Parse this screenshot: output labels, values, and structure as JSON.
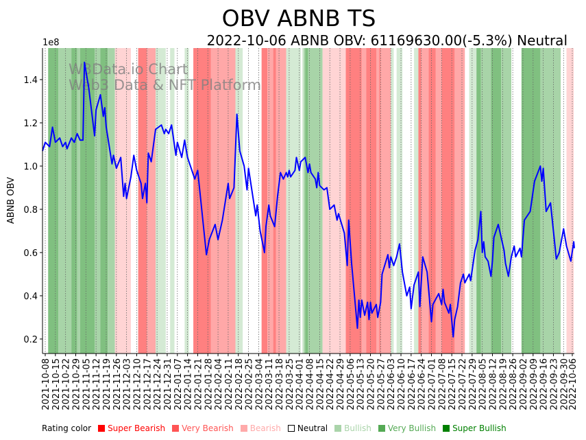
{
  "chart_data": {
    "type": "line",
    "title": "OBV ABNB TS",
    "subtitle": "2022-10-06 ABNB OBV: 61169630.00(-5.3%) Neutral",
    "ylabel": "ABNB OBV",
    "y_scale_label": "1e8",
    "watermark": [
      "W3Data.io Chart",
      "Web3 Data & NFT Platform"
    ],
    "x_unit": "days since 2021-10-08",
    "xlim": [
      -2,
      365
    ],
    "ylim": [
      0.133,
      1.546
    ],
    "yticks": [
      0.2,
      0.4,
      0.6,
      0.8,
      1.0,
      1.2,
      1.4
    ],
    "ytick_labels": [
      "0.2",
      "0.4",
      "0.6",
      "0.8",
      "1.0",
      "1.2",
      "1.4"
    ],
    "xtick_labels": [
      "2021-10-08",
      "2021-10-15",
      "2021-10-22",
      "2021-10-29",
      "2021-11-05",
      "2021-11-12",
      "2021-11-19",
      "2021-11-26",
      "2021-12-03",
      "2021-12-10",
      "2021-12-17",
      "2021-12-24",
      "2021-12-31",
      "2022-01-07",
      "2022-01-14",
      "2022-01-21",
      "2022-01-28",
      "2022-02-04",
      "2022-02-11",
      "2022-02-18",
      "2022-02-25",
      "2022-03-04",
      "2022-03-11",
      "2022-03-18",
      "2022-03-25",
      "2022-04-01",
      "2022-04-08",
      "2022-04-15",
      "2022-04-22",
      "2022-04-29",
      "2022-05-06",
      "2022-05-13",
      "2022-05-20",
      "2022-05-27",
      "2022-06-03",
      "2022-06-10",
      "2022-06-17",
      "2022-06-24",
      "2022-07-01",
      "2022-07-08",
      "2022-07-15",
      "2022-07-22",
      "2022-07-29",
      "2022-08-05",
      "2022-08-12",
      "2022-08-19",
      "2022-08-26",
      "2022-09-02",
      "2022-09-09",
      "2022-09-16",
      "2022-09-23",
      "2022-09-30",
      "2022-10-06"
    ],
    "xtick_days": [
      0,
      7,
      14,
      21,
      28,
      35,
      42,
      49,
      56,
      63,
      70,
      77,
      84,
      91,
      98,
      105,
      112,
      119,
      126,
      133,
      140,
      147,
      154,
      161,
      168,
      175,
      182,
      189,
      196,
      203,
      210,
      217,
      224,
      231,
      238,
      245,
      252,
      259,
      266,
      273,
      280,
      287,
      294,
      301,
      308,
      315,
      322,
      329,
      336,
      343,
      350,
      357,
      363
    ],
    "series": [
      {
        "name": "ABNB OBV (1e8)",
        "color": "#0000ff",
        "x": [
          -2,
          0,
          3,
          5,
          7,
          10,
          12,
          14,
          15,
          18,
          20,
          22,
          24,
          26,
          27,
          30,
          34,
          35,
          38,
          40,
          41,
          42,
          46,
          47,
          49,
          52,
          54,
          55,
          56,
          59,
          61,
          63,
          66,
          67,
          69,
          70,
          71,
          73,
          76,
          80,
          82,
          83,
          85,
          87,
          90,
          91,
          94,
          96,
          98,
          103,
          105,
          111,
          113,
          117,
          119,
          122,
          126,
          127,
          130,
          132,
          134,
          137,
          139,
          140,
          145,
          146,
          148,
          151,
          152,
          154,
          155,
          158,
          160,
          162,
          164,
          166,
          167,
          168,
          169,
          172,
          173,
          175,
          176,
          179,
          181,
          182,
          183,
          186,
          187,
          188,
          189,
          192,
          194,
          196,
          199,
          201,
          202,
          206,
          208,
          209,
          211,
          215,
          216,
          217,
          218,
          220,
          222,
          223,
          224,
          225,
          228,
          229,
          231,
          232,
          236,
          237,
          238,
          240,
          242,
          244,
          246,
          249,
          251,
          252,
          254,
          257,
          258,
          260,
          263,
          266,
          267,
          271,
          273,
          274,
          275,
          278,
          279,
          281,
          282,
          284,
          286,
          288,
          289,
          292,
          293,
          296,
          298,
          300,
          301,
          302,
          303,
          305,
          307,
          308,
          309,
          312,
          314,
          316,
          317,
          319,
          321,
          323,
          324,
          327,
          328,
          330,
          334,
          337,
          341,
          342,
          343,
          345,
          348,
          352,
          354,
          357,
          359,
          362,
          364,
          365
        ],
        "y": [
          1.07,
          1.11,
          1.09,
          1.18,
          1.11,
          1.13,
          1.09,
          1.11,
          1.08,
          1.13,
          1.11,
          1.15,
          1.12,
          1.12,
          1.48,
          1.36,
          1.14,
          1.26,
          1.33,
          1.23,
          1.27,
          1.18,
          1.01,
          1.05,
          0.99,
          1.04,
          0.86,
          0.92,
          0.85,
          0.95,
          1.05,
          0.98,
          0.92,
          0.85,
          0.92,
          0.83,
          1.06,
          1.02,
          1.17,
          1.19,
          1.15,
          1.17,
          1.15,
          1.19,
          1.05,
          1.11,
          1.04,
          1.12,
          1.04,
          0.94,
          0.98,
          0.59,
          0.66,
          0.73,
          0.66,
          0.75,
          0.92,
          0.85,
          0.9,
          1.24,
          1.07,
          1.0,
          0.89,
          0.99,
          0.77,
          0.82,
          0.7,
          0.6,
          0.72,
          0.82,
          0.77,
          0.72,
          0.86,
          0.97,
          0.94,
          0.97,
          0.95,
          0.98,
          0.95,
          0.98,
          1.04,
          0.98,
          1.02,
          1.04,
          0.97,
          1.01,
          0.97,
          0.94,
          0.9,
          0.97,
          0.91,
          0.89,
          0.9,
          0.8,
          0.82,
          0.75,
          0.78,
          0.69,
          0.54,
          0.75,
          0.55,
          0.25,
          0.38,
          0.3,
          0.38,
          0.31,
          0.37,
          0.29,
          0.37,
          0.32,
          0.36,
          0.3,
          0.37,
          0.5,
          0.59,
          0.53,
          0.58,
          0.54,
          0.58,
          0.64,
          0.51,
          0.4,
          0.44,
          0.34,
          0.45,
          0.51,
          0.35,
          0.58,
          0.51,
          0.28,
          0.36,
          0.41,
          0.36,
          0.43,
          0.37,
          0.32,
          0.36,
          0.21,
          0.29,
          0.35,
          0.46,
          0.5,
          0.46,
          0.5,
          0.47,
          0.61,
          0.66,
          0.79,
          0.6,
          0.65,
          0.58,
          0.56,
          0.49,
          0.56,
          0.67,
          0.73,
          0.67,
          0.61,
          0.55,
          0.49,
          0.58,
          0.63,
          0.58,
          0.62,
          0.58,
          0.75,
          0.79,
          0.93,
          1.0,
          0.93,
          0.99,
          0.79,
          0.83,
          0.57,
          0.6,
          0.71,
          0.63,
          0.56,
          0.65,
          0.62
        ]
      }
    ],
    "rating_bands": [
      [
        2,
        9,
        "SBu"
      ],
      [
        9,
        18,
        "VBu"
      ],
      [
        18,
        22,
        "SBu"
      ],
      [
        22,
        24,
        "VBu"
      ],
      [
        24,
        34,
        "SBu"
      ],
      [
        34,
        38,
        "VBu"
      ],
      [
        38,
        43,
        "SBu"
      ],
      [
        43,
        48,
        "VBu"
      ],
      [
        48,
        59,
        "B"
      ],
      [
        64,
        70,
        "SB"
      ],
      [
        70,
        76,
        "VB"
      ],
      [
        76,
        83,
        "Bu"
      ],
      [
        86,
        89,
        "Bu"
      ],
      [
        96,
        99,
        "Bu"
      ],
      [
        102,
        114,
        "SB"
      ],
      [
        114,
        131,
        "VB"
      ],
      [
        131,
        136,
        "Bu"
      ],
      [
        149,
        153,
        "SB"
      ],
      [
        153,
        157,
        "VB"
      ],
      [
        157,
        159,
        "SB"
      ],
      [
        159,
        166,
        "VB"
      ],
      [
        166,
        176,
        "Bu"
      ],
      [
        177,
        178,
        "Bu"
      ],
      [
        178,
        179,
        "VBu"
      ],
      [
        179,
        181,
        "SBu"
      ],
      [
        181,
        191,
        "VBu"
      ],
      [
        191,
        207,
        "B"
      ],
      [
        207,
        218,
        "SB"
      ],
      [
        218,
        221,
        "VB"
      ],
      [
        221,
        228,
        "SB"
      ],
      [
        228,
        230,
        "VB"
      ],
      [
        230,
        231,
        "SB"
      ],
      [
        231,
        238,
        "VB"
      ],
      [
        238,
        240,
        "Bu"
      ],
      [
        242,
        246,
        "Bu"
      ],
      [
        254,
        257,
        "Bu"
      ],
      [
        257,
        259,
        "SB"
      ],
      [
        259,
        264,
        "VB"
      ],
      [
        264,
        269,
        "SB"
      ],
      [
        269,
        273,
        "VB"
      ],
      [
        273,
        282,
        "SB"
      ],
      [
        282,
        289,
        "VB"
      ],
      [
        292,
        297,
        "Bu"
      ],
      [
        297,
        300,
        "SBu"
      ],
      [
        300,
        307,
        "VBu"
      ],
      [
        307,
        314,
        "SBu"
      ],
      [
        314,
        321,
        "VBu"
      ],
      [
        328,
        341,
        "SBu"
      ],
      [
        341,
        355,
        "VBu"
      ],
      [
        359,
        364,
        "B"
      ]
    ],
    "band_colors": {
      "SB": "#ff8080",
      "VB": "#ffa8a8",
      "B": "#ffd4d4",
      "Bu": "#d4ead4",
      "VBu": "#a8d4a8",
      "SBu": "#80c080"
    },
    "legend": {
      "title": "Rating color",
      "items": [
        {
          "label": "Super Bearish",
          "color": "#ff0000"
        },
        {
          "label": "Very Bearish",
          "color": "#ff5555"
        },
        {
          "label": "Bearish",
          "color": "#ffaaaa"
        },
        {
          "label": "Neutral",
          "color": "#000000"
        },
        {
          "label": "Bullish",
          "color": "#aad4aa"
        },
        {
          "label": "Very Bullish",
          "color": "#55aa55"
        },
        {
          "label": "Super Bullish",
          "color": "#008000"
        }
      ]
    }
  }
}
